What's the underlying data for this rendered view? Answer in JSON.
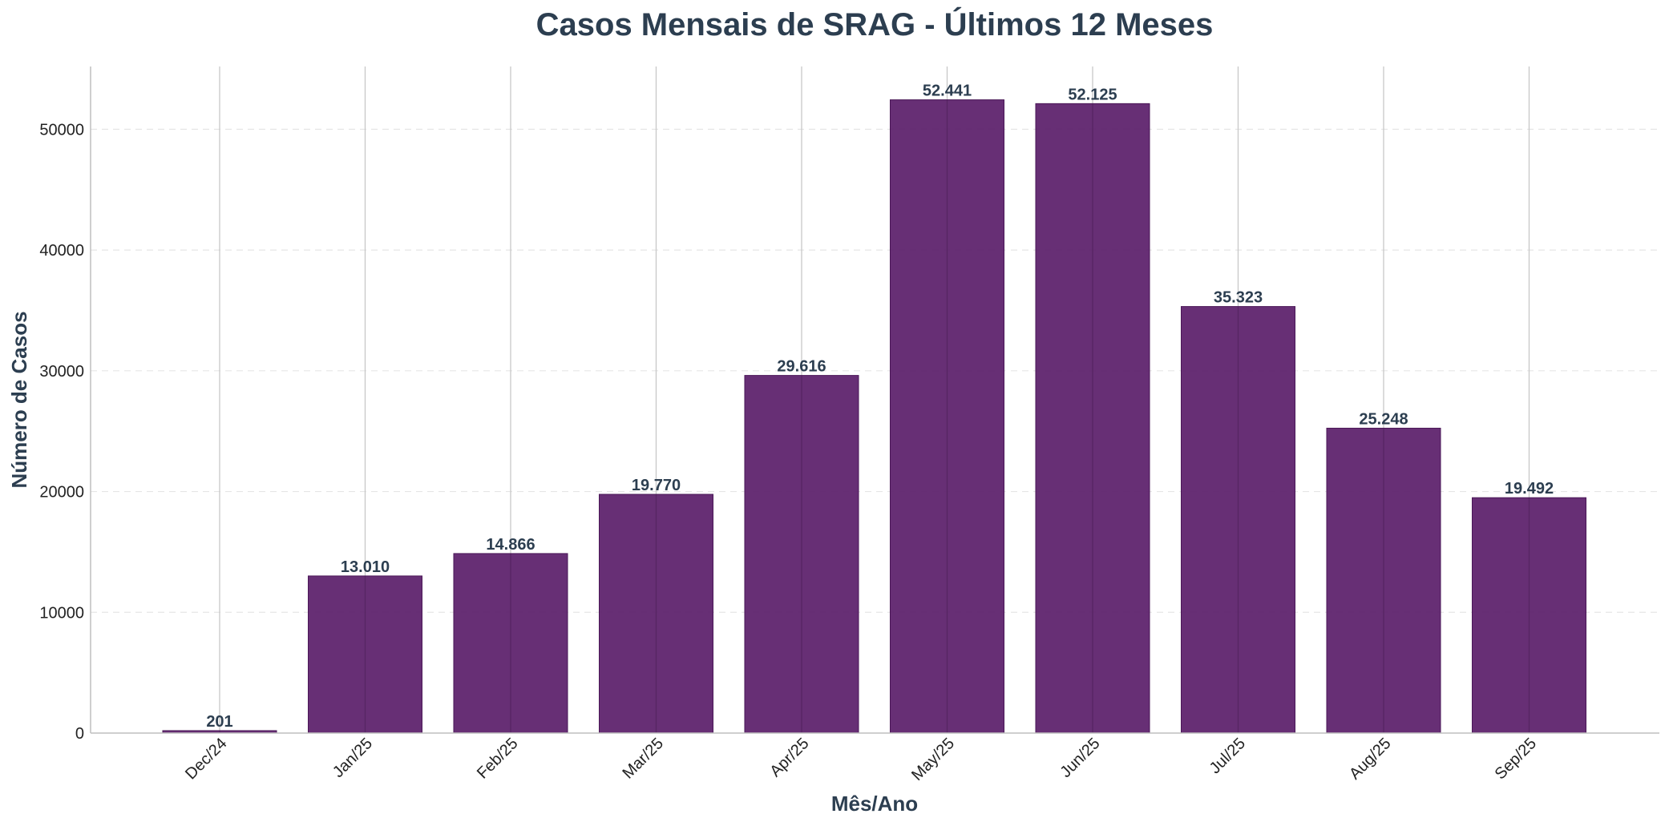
{
  "chart_data": {
    "type": "bar",
    "title": "Casos Mensais de SRAG - Últimos 12 Meses",
    "xlabel": "Mês/Ano",
    "ylabel": "Número de Casos",
    "categories": [
      "Dec/24",
      "Jan/25",
      "Feb/25",
      "Mar/25",
      "Apr/25",
      "May/25",
      "Jun/25",
      "Jul/25",
      "Aug/25",
      "Sep/25"
    ],
    "values": [
      201,
      13010,
      14866,
      19770,
      29616,
      52441,
      52125,
      35323,
      25248,
      19492
    ],
    "value_labels": [
      "201",
      "13.010",
      "14.866",
      "19.770",
      "29.616",
      "52.441",
      "52.125",
      "35.323",
      "25.248",
      "19.492"
    ],
    "yticks": [
      0,
      10000,
      20000,
      30000,
      40000,
      50000
    ],
    "ylim": [
      0,
      55200
    ],
    "grid": "vertical-solid-and-horizontal-dashed",
    "colors": {
      "bar": "#5b1f6b",
      "bar_edge": "#4a1757",
      "text": "#2c3e50",
      "axis": "#bfbfbf"
    }
  }
}
